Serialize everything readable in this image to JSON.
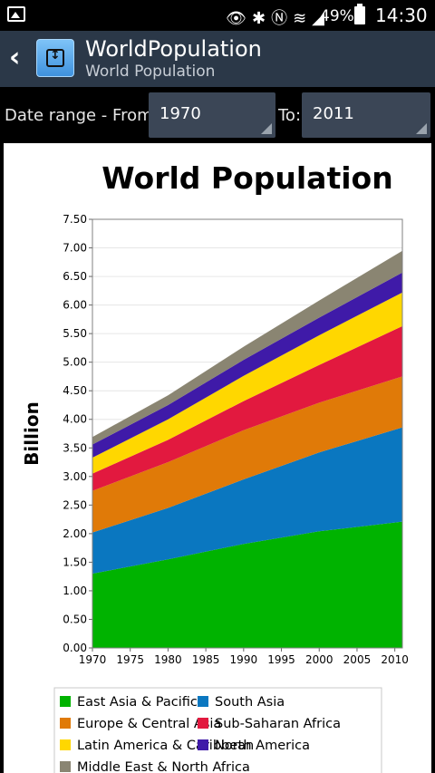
{
  "status_bar": {
    "battery": "49%",
    "time": "14:30",
    "icons": [
      "gallery-icon",
      "eye-icon",
      "bluetooth-icon",
      "nfc-icon",
      "wifi-icon",
      "signal-icon",
      "battery-icon"
    ]
  },
  "action_bar": {
    "title": "WorldPopulation",
    "subtitle": "World Population"
  },
  "date_range": {
    "from_label": "Date range - From:",
    "from_value": "1970",
    "to_label": "To:",
    "to_value": "2011"
  },
  "colors": {
    "statusbar": "#000000",
    "actionbar": "#2b3848",
    "spinner": "#3b4656"
  },
  "chart_data": {
    "type": "area",
    "stacked": true,
    "title": "World Population",
    "xlabel": "",
    "ylabel": "Billion",
    "xlim": [
      1970,
      2011
    ],
    "ylim": [
      0,
      7.5
    ],
    "x_ticks": [
      "1970",
      "1975",
      "1980",
      "1985",
      "1990",
      "1995",
      "2000",
      "2005",
      "2010"
    ],
    "y_ticks": [
      "0.00",
      "0.50",
      "1.00",
      "1.50",
      "2.00",
      "2.50",
      "3.00",
      "3.50",
      "4.00",
      "4.50",
      "5.00",
      "5.50",
      "6.00",
      "6.50",
      "7.00",
      "7.50"
    ],
    "grid": true,
    "legend": "bottom",
    "x": [
      1970,
      1980,
      1990,
      2000,
      2011
    ],
    "series": [
      {
        "name": "East Asia & Pacific",
        "color": "#00b300",
        "values": [
          1.3,
          1.55,
          1.82,
          2.04,
          2.21
        ]
      },
      {
        "name": "South Asia",
        "color": "#0a77c0",
        "values": [
          0.72,
          0.9,
          1.13,
          1.38,
          1.65
        ]
      },
      {
        "name": "Europe & Central Asia",
        "color": "#e07a08",
        "values": [
          0.73,
          0.8,
          0.86,
          0.87,
          0.89
        ]
      },
      {
        "name": "Sub-Saharan Africa",
        "color": "#e2193f",
        "values": [
          0.3,
          0.39,
          0.51,
          0.66,
          0.88
        ]
      },
      {
        "name": "Latin America & Caribbean",
        "color": "#ffd700",
        "values": [
          0.28,
          0.36,
          0.44,
          0.52,
          0.59
        ]
      },
      {
        "name": "North America",
        "color": "#3f1aa8",
        "values": [
          0.23,
          0.25,
          0.28,
          0.31,
          0.35
        ]
      },
      {
        "name": "Middle East & North Africa",
        "color": "#8a8572",
        "values": [
          0.13,
          0.17,
          0.23,
          0.3,
          0.38
        ]
      }
    ]
  }
}
